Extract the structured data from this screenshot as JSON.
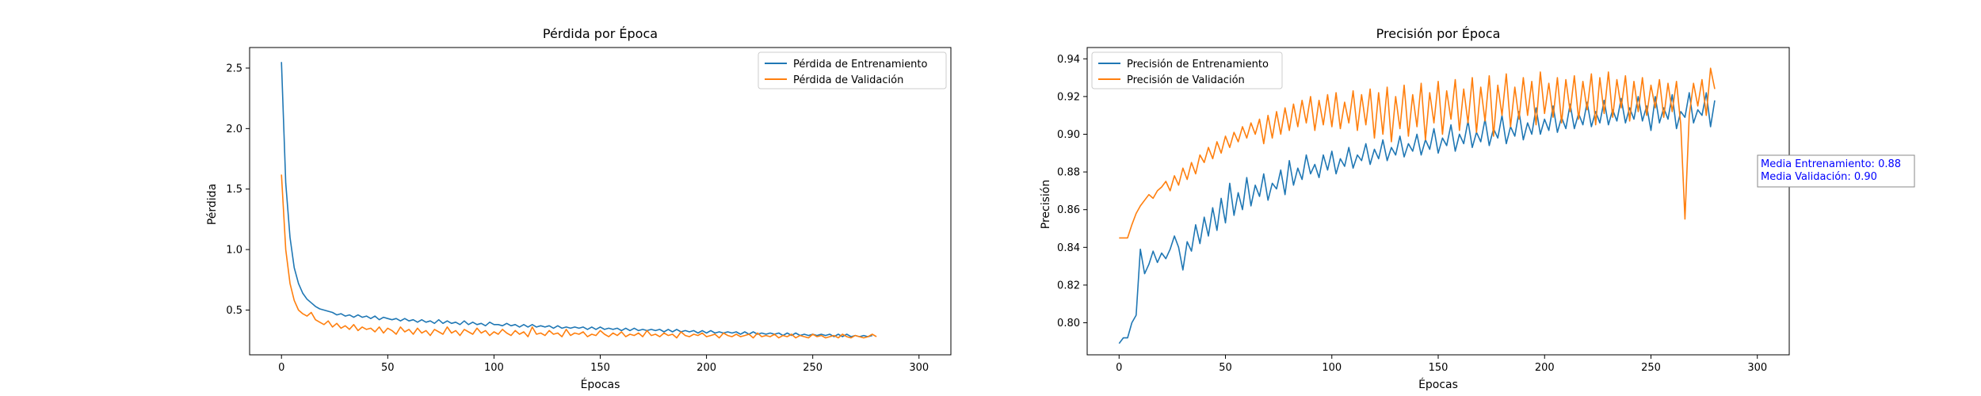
{
  "chart_data": [
    {
      "type": "line",
      "title": "Pérdida por Época",
      "xlabel": "Épocas",
      "ylabel": "Pérdida",
      "xlim": [
        -15,
        315
      ],
      "ylim": [
        0.13,
        2.67
      ],
      "xticks": [
        0,
        50,
        100,
        150,
        200,
        250,
        300
      ],
      "yticks": [
        0.5,
        1.0,
        1.5,
        2.0,
        2.5
      ],
      "legend": "top-right",
      "grid": false,
      "x_start": 0,
      "x_end": 300,
      "series": [
        {
          "name": "Pérdida de Entrenamiento",
          "color": "#1f77b4",
          "values": [
            2.55,
            1.55,
            1.1,
            0.85,
            0.72,
            0.64,
            0.59,
            0.56,
            0.53,
            0.51,
            0.5,
            0.49,
            0.48,
            0.46,
            0.47,
            0.45,
            0.46,
            0.44,
            0.46,
            0.44,
            0.45,
            0.43,
            0.45,
            0.42,
            0.44,
            0.43,
            0.42,
            0.43,
            0.41,
            0.43,
            0.41,
            0.42,
            0.4,
            0.42,
            0.4,
            0.41,
            0.39,
            0.42,
            0.39,
            0.41,
            0.39,
            0.4,
            0.38,
            0.41,
            0.38,
            0.4,
            0.38,
            0.39,
            0.37,
            0.4,
            0.38,
            0.38,
            0.37,
            0.39,
            0.37,
            0.38,
            0.36,
            0.38,
            0.36,
            0.38,
            0.36,
            0.37,
            0.36,
            0.37,
            0.35,
            0.37,
            0.35,
            0.36,
            0.35,
            0.36,
            0.35,
            0.36,
            0.34,
            0.36,
            0.34,
            0.36,
            0.34,
            0.35,
            0.34,
            0.35,
            0.33,
            0.35,
            0.33,
            0.35,
            0.33,
            0.34,
            0.33,
            0.34,
            0.33,
            0.34,
            0.32,
            0.34,
            0.32,
            0.34,
            0.32,
            0.33,
            0.32,
            0.33,
            0.31,
            0.33,
            0.31,
            0.33,
            0.31,
            0.32,
            0.31,
            0.32,
            0.31,
            0.32,
            0.3,
            0.32,
            0.3,
            0.32,
            0.3,
            0.31,
            0.3,
            0.31,
            0.3,
            0.31,
            0.29,
            0.31,
            0.29,
            0.31,
            0.29,
            0.3,
            0.29,
            0.3,
            0.29,
            0.3,
            0.29,
            0.3,
            0.28,
            0.3,
            0.28,
            0.3,
            0.28,
            0.29,
            0.28,
            0.29,
            0.28,
            0.29
          ],
          "values_step": 2
        },
        {
          "name": "Pérdida de Validación",
          "color": "#ff7f0e",
          "values": [
            1.62,
            1.0,
            0.72,
            0.58,
            0.5,
            0.47,
            0.45,
            0.48,
            0.42,
            0.4,
            0.38,
            0.41,
            0.36,
            0.39,
            0.35,
            0.37,
            0.34,
            0.38,
            0.33,
            0.36,
            0.34,
            0.35,
            0.32,
            0.36,
            0.31,
            0.35,
            0.33,
            0.3,
            0.36,
            0.32,
            0.34,
            0.3,
            0.35,
            0.31,
            0.33,
            0.29,
            0.34,
            0.32,
            0.3,
            0.36,
            0.31,
            0.33,
            0.29,
            0.34,
            0.32,
            0.3,
            0.35,
            0.31,
            0.33,
            0.29,
            0.32,
            0.3,
            0.34,
            0.31,
            0.29,
            0.33,
            0.3,
            0.32,
            0.28,
            0.36,
            0.3,
            0.31,
            0.29,
            0.33,
            0.3,
            0.31,
            0.28,
            0.34,
            0.29,
            0.31,
            0.3,
            0.32,
            0.28,
            0.3,
            0.29,
            0.33,
            0.3,
            0.28,
            0.31,
            0.29,
            0.32,
            0.28,
            0.3,
            0.29,
            0.31,
            0.28,
            0.33,
            0.29,
            0.3,
            0.28,
            0.31,
            0.29,
            0.3,
            0.27,
            0.32,
            0.29,
            0.28,
            0.3,
            0.29,
            0.31,
            0.28,
            0.29,
            0.3,
            0.27,
            0.31,
            0.29,
            0.28,
            0.3,
            0.28,
            0.29,
            0.3,
            0.27,
            0.31,
            0.28,
            0.29,
            0.28,
            0.3,
            0.27,
            0.29,
            0.28,
            0.3,
            0.27,
            0.29,
            0.28,
            0.27,
            0.3,
            0.28,
            0.29,
            0.27,
            0.28,
            0.29,
            0.27,
            0.3,
            0.28,
            0.27,
            0.29,
            0.28,
            0.27,
            0.28,
            0.3,
            0.28
          ],
          "values_step": 2
        }
      ]
    },
    {
      "type": "line",
      "title": "Precisión por Época",
      "xlabel": "Épocas",
      "ylabel": "Precisión",
      "xlim": [
        -15,
        315
      ],
      "ylim": [
        0.783,
        0.946
      ],
      "xticks": [
        0,
        50,
        100,
        150,
        200,
        250,
        300
      ],
      "yticks": [
        0.8,
        0.82,
        0.84,
        0.86,
        0.88,
        0.9,
        0.92,
        0.94
      ],
      "yticks_format": 2,
      "legend": "top-left",
      "grid": false,
      "x_start": 0,
      "x_end": 300,
      "annotation": {
        "lines": [
          "Media Entrenamiento: 0.88",
          "Media Validación: 0.90"
        ],
        "color": "#0000ff"
      },
      "series": [
        {
          "name": "Precisión de Entrenamiento",
          "color": "#1f77b4",
          "values": [
            0.789,
            0.792,
            0.792,
            0.8,
            0.804,
            0.839,
            0.826,
            0.831,
            0.838,
            0.832,
            0.837,
            0.834,
            0.839,
            0.846,
            0.84,
            0.828,
            0.843,
            0.838,
            0.852,
            0.842,
            0.856,
            0.846,
            0.861,
            0.849,
            0.866,
            0.853,
            0.874,
            0.857,
            0.869,
            0.86,
            0.877,
            0.862,
            0.873,
            0.867,
            0.879,
            0.865,
            0.874,
            0.871,
            0.881,
            0.868,
            0.886,
            0.873,
            0.882,
            0.876,
            0.889,
            0.879,
            0.884,
            0.877,
            0.889,
            0.881,
            0.891,
            0.879,
            0.887,
            0.883,
            0.893,
            0.882,
            0.889,
            0.886,
            0.895,
            0.884,
            0.892,
            0.887,
            0.897,
            0.886,
            0.893,
            0.889,
            0.899,
            0.888,
            0.895,
            0.891,
            0.9,
            0.889,
            0.897,
            0.892,
            0.903,
            0.89,
            0.898,
            0.894,
            0.905,
            0.891,
            0.9,
            0.895,
            0.907,
            0.893,
            0.901,
            0.896,
            0.908,
            0.894,
            0.903,
            0.898,
            0.91,
            0.895,
            0.904,
            0.899,
            0.912,
            0.897,
            0.906,
            0.9,
            0.914,
            0.9,
            0.908,
            0.902,
            0.915,
            0.901,
            0.909,
            0.903,
            0.916,
            0.903,
            0.911,
            0.905,
            0.917,
            0.904,
            0.912,
            0.906,
            0.918,
            0.905,
            0.913,
            0.907,
            0.919,
            0.906,
            0.914,
            0.908,
            0.92,
            0.907,
            0.915,
            0.902,
            0.92,
            0.906,
            0.914,
            0.908,
            0.921,
            0.903,
            0.912,
            0.909,
            0.922,
            0.906,
            0.913,
            0.91,
            0.922,
            0.904,
            0.918
          ],
          "values_step": 2
        },
        {
          "name": "Precisión de Validación",
          "color": "#ff7f0e",
          "values": [
            0.845,
            0.845,
            0.845,
            0.852,
            0.858,
            0.862,
            0.865,
            0.868,
            0.866,
            0.87,
            0.872,
            0.875,
            0.87,
            0.878,
            0.873,
            0.882,
            0.876,
            0.885,
            0.879,
            0.889,
            0.885,
            0.893,
            0.887,
            0.896,
            0.89,
            0.899,
            0.893,
            0.901,
            0.896,
            0.904,
            0.898,
            0.906,
            0.9,
            0.908,
            0.895,
            0.91,
            0.898,
            0.912,
            0.9,
            0.914,
            0.902,
            0.916,
            0.904,
            0.918,
            0.906,
            0.92,
            0.902,
            0.918,
            0.905,
            0.921,
            0.904,
            0.922,
            0.903,
            0.917,
            0.906,
            0.923,
            0.902,
            0.921,
            0.905,
            0.924,
            0.898,
            0.922,
            0.9,
            0.925,
            0.896,
            0.92,
            0.903,
            0.926,
            0.899,
            0.921,
            0.904,
            0.927,
            0.897,
            0.922,
            0.906,
            0.928,
            0.9,
            0.923,
            0.908,
            0.929,
            0.902,
            0.924,
            0.906,
            0.93,
            0.901,
            0.925,
            0.907,
            0.931,
            0.899,
            0.926,
            0.91,
            0.932,
            0.904,
            0.925,
            0.908,
            0.93,
            0.91,
            0.928,
            0.905,
            0.933,
            0.911,
            0.927,
            0.909,
            0.93,
            0.906,
            0.929,
            0.912,
            0.931,
            0.908,
            0.928,
            0.913,
            0.932,
            0.905,
            0.93,
            0.911,
            0.933,
            0.909,
            0.929,
            0.914,
            0.931,
            0.907,
            0.928,
            0.912,
            0.93,
            0.91,
            0.926,
            0.914,
            0.929,
            0.909,
            0.927,
            0.912,
            0.928,
            0.905,
            0.855,
            0.91,
            0.927,
            0.915,
            0.929,
            0.91,
            0.935,
            0.924
          ],
          "values_step": 2
        }
      ]
    }
  ]
}
